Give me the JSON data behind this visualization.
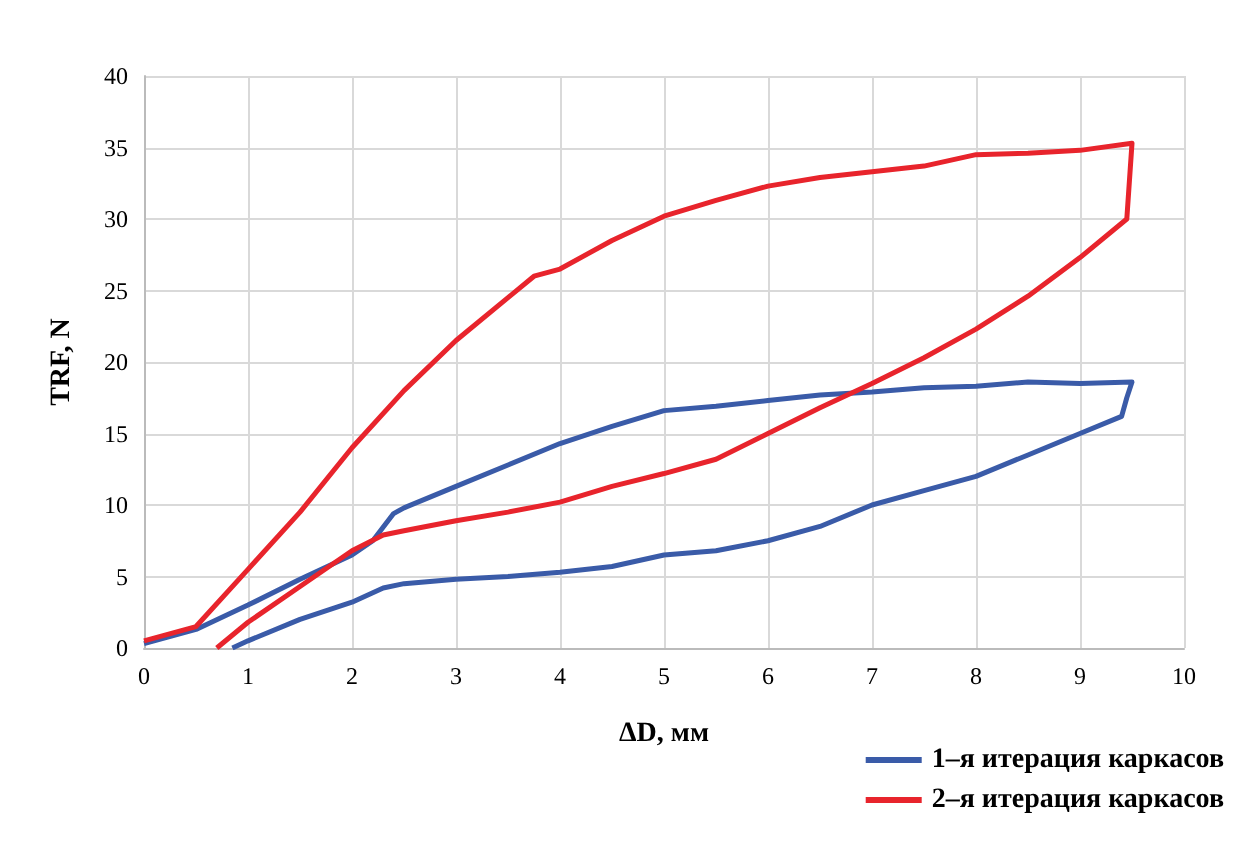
{
  "chart_data": {
    "type": "line",
    "xlabel": "ΔD, мм",
    "ylabel": "TRF, N",
    "xlim": [
      0,
      10
    ],
    "ylim": [
      0,
      40
    ],
    "xticks": [
      0,
      1,
      2,
      3,
      4,
      5,
      6,
      7,
      8,
      9,
      10
    ],
    "yticks": [
      0,
      5,
      10,
      15,
      20,
      25,
      30,
      35,
      40
    ],
    "grid": true,
    "legend": "bottom right",
    "marker": "none",
    "line_style": "solid",
    "series": [
      {
        "name": "1–я итерация каркасов",
        "color": "#3a5ba8",
        "x": [
          0,
          0.5,
          1,
          1.5,
          2,
          2.2,
          2.4,
          2.5,
          3,
          3.5,
          4,
          4.5,
          5,
          5.5,
          6,
          6.5,
          7,
          7.5,
          8,
          8.5,
          9,
          9.5,
          9.45,
          9.4,
          9,
          8.5,
          8,
          7.5,
          7,
          6.5,
          6,
          5.5,
          5,
          4.5,
          4,
          3.5,
          3,
          2.5,
          2.3,
          2,
          1.5,
          1,
          0.85
        ],
        "values": [
          0.3,
          1.3,
          3,
          4.8,
          6.5,
          7.5,
          9.4,
          9.8,
          11.3,
          12.8,
          14.3,
          15.5,
          16.6,
          16.9,
          17.3,
          17.7,
          17.9,
          18.2,
          18.3,
          18.6,
          18.5,
          18.6,
          17.5,
          16.2,
          15,
          13.5,
          12,
          11,
          10,
          8.5,
          7.5,
          6.8,
          6.5,
          5.7,
          5.3,
          5,
          4.8,
          4.5,
          4.2,
          3.2,
          2,
          0.5,
          0
        ]
      },
      {
        "name": "2–я итерация каркасов",
        "color": "#e8242c",
        "x": [
          0,
          0.5,
          1,
          1.5,
          2,
          2.5,
          3,
          3.5,
          3.75,
          4,
          4.5,
          5,
          5.5,
          6,
          6.5,
          7,
          7.5,
          8,
          8.5,
          9,
          9.5,
          9.45,
          9,
          8.5,
          8,
          7.5,
          7,
          6.5,
          6,
          5.5,
          5,
          4.5,
          4,
          3.5,
          3,
          2.5,
          2.3,
          2,
          1.5,
          1,
          0.7
        ],
        "values": [
          0.5,
          1.5,
          5.5,
          9.5,
          14,
          18,
          21.5,
          24.5,
          26,
          26.5,
          28.5,
          30.2,
          31.3,
          32.3,
          32.9,
          33.3,
          33.7,
          34.5,
          34.6,
          34.8,
          35.3,
          30,
          27.3,
          24.6,
          22.3,
          20.3,
          18.5,
          16.8,
          15,
          13.2,
          12.2,
          11.3,
          10.2,
          9.5,
          8.9,
          8.2,
          7.9,
          6.8,
          4.3,
          1.8,
          0
        ]
      }
    ]
  }
}
